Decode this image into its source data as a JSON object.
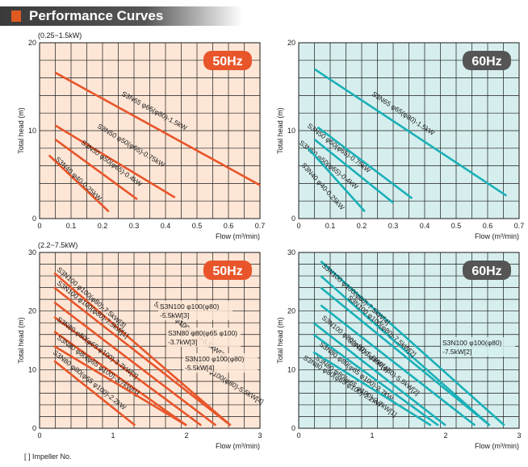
{
  "header": {
    "title": "Performance Curves"
  },
  "footnote": "[ ] Impeller No.",
  "colors": {
    "hz50": "#e8552a",
    "hz60": "#1ab0b8",
    "bg50": "#fde6d6",
    "bg60": "#d6efee",
    "grid": "#1a1a1a"
  },
  "chart_data": [
    {
      "type": "line",
      "subtitle": "(0.25~1.5kW)",
      "badge": "50Hz",
      "xlabel": "Flow (m³/min)",
      "ylabel": "Total head (m)",
      "xlim": [
        0,
        0.7
      ],
      "ylim": [
        0,
        20
      ],
      "xticks": [
        "0",
        "0.1",
        "0.2",
        "0.3",
        "0.4",
        "0.5",
        "0.6",
        "0.7"
      ],
      "yticks": [
        "0",
        "10",
        "20"
      ],
      "series": [
        {
          "name": "S3N65 φ65(φ80)-1.5kW",
          "x": [
            0.05,
            0.7
          ],
          "y": [
            16.6,
            3.8
          ]
        },
        {
          "name": "S3N50 φ50(φ65)-0.75kW",
          "x": [
            0.05,
            0.43
          ],
          "y": [
            10.6,
            2.4
          ]
        },
        {
          "name": "S3N50 φ50(φ65)-0.4kW",
          "x": [
            0.05,
            0.31
          ],
          "y": [
            9.0,
            2.2
          ]
        },
        {
          "name": "S3N40 φ40-0.25kW",
          "x": [
            0.03,
            0.22
          ],
          "y": [
            7.2,
            0.8
          ]
        }
      ]
    },
    {
      "type": "line",
      "subtitle": "",
      "badge": "60Hz",
      "xlabel": "Flow (m³/min)",
      "ylabel": "Total head (m)",
      "xlim": [
        0,
        0.7
      ],
      "ylim": [
        0,
        20
      ],
      "xticks": [
        "0",
        "0.1",
        "0.2",
        "0.3",
        "0.4",
        "0.5",
        "0.6",
        "0.7"
      ],
      "yticks": [
        "0",
        "10",
        "20"
      ],
      "series": [
        {
          "name": "S3N65 φ65(φ80)-1.5kW",
          "x": [
            0.05,
            0.66
          ],
          "y": [
            17.0,
            2.6
          ]
        },
        {
          "name": "S3N50 φ50(φ65)-0.75kW",
          "x": [
            0.06,
            0.36
          ],
          "y": [
            10.4,
            2.3
          ]
        },
        {
          "name": "S3N50 φ50(φ65)-0.4kW",
          "x": [
            0.05,
            0.3
          ],
          "y": [
            9.0,
            1.8
          ]
        },
        {
          "name": "S3N40 φ40-0.25kW",
          "x": [
            0.03,
            0.21
          ],
          "y": [
            8.0,
            0.8
          ]
        }
      ]
    },
    {
      "type": "line",
      "subtitle": "(2.2~7.5kW)",
      "badge": "50Hz",
      "xlabel": "Flow (m³/min)",
      "ylabel": "Total head (m)",
      "xlim": [
        0,
        3
      ],
      "ylim": [
        0,
        30
      ],
      "xticks": [
        "0",
        "1",
        "2",
        "3"
      ],
      "yticks": [
        "0",
        "10",
        "20",
        "30"
      ],
      "annotations": [
        "S3N100 φ100(φ80) -5.5kW[3]",
        "S3N80 φ80(φ65 φ100) -3.7kW[3]",
        "S3N100 φ100(φ80) -5.5kW[4]"
      ],
      "series": [
        {
          "name": "S3N100 φ100(φ80)-7.5kW[3]",
          "x": [
            0.2,
            2.6
          ],
          "y": [
            26.5,
            0.5
          ]
        },
        {
          "name": "S3N100 φ100(φ80)-7.5kW[1]",
          "x": [
            0.2,
            2.6
          ],
          "y": [
            24.0,
            0.5
          ]
        },
        {
          "name": "S3N100 φ100(φ80)-5.5kW[3]",
          "x": [
            0.2,
            2.4
          ],
          "y": [
            21.5,
            0.5
          ]
        },
        {
          "name": "S3N80 φ80(φ65 φ100)-3.7kW[3]",
          "x": [
            0.2,
            2.2
          ],
          "y": [
            19.0,
            0.5
          ]
        },
        {
          "name": "S3N80 φ80(φ65 φ100)-3.7kW[1]",
          "x": [
            0.2,
            2.0
          ],
          "y": [
            16.5,
            0.5
          ]
        },
        {
          "name": "S3N100 φ100(φ80)-5.5kW[4]",
          "x": [
            0.2,
            2.0
          ],
          "y": [
            14.0,
            0.5
          ]
        },
        {
          "name": "S3N80 φ80(φ65 φ100)-2.2kW",
          "x": [
            0.2,
            1.3
          ],
          "y": [
            11.5,
            0.5
          ]
        }
      ]
    },
    {
      "type": "line",
      "subtitle": "",
      "badge": "60Hz",
      "xlabel": "Flow (m³/min)",
      "ylabel": "Total head (m)",
      "xlim": [
        0,
        3
      ],
      "ylim": [
        0,
        30
      ],
      "xticks": [
        "0",
        "1",
        "2",
        "3"
      ],
      "yticks": [
        "0",
        "10",
        "20",
        "30"
      ],
      "annotations": [
        "S3N100 φ100(φ80) -7.5kW[2]"
      ],
      "series": [
        {
          "name": "S3N100 φ100(φ80)-7.5kW[4]",
          "x": [
            0.3,
            2.8
          ],
          "y": [
            28.5,
            0.5
          ]
        },
        {
          "name": "S3N100 φ100(φ80)-7.5kW[2]",
          "x": [
            0.3,
            2.6
          ],
          "y": [
            26.0,
            0.5
          ]
        },
        {
          "name": "S3N100 φ80(φ80)-5.5kW[4]",
          "x": [
            0.3,
            2.6
          ],
          "y": [
            24.0,
            0.5
          ]
        },
        {
          "name": "S3N100 φ100(φ80)-5.5kW[2]",
          "x": [
            0.3,
            2.4
          ],
          "y": [
            21.0,
            0.5
          ]
        },
        {
          "name": "S3N80 φ80(φ65 φ100)-3.7kW",
          "x": [
            0.2,
            2.0
          ],
          "y": [
            18.0,
            0.5
          ]
        },
        {
          "name": "S3N80 φ80(φ65 φ100)-3.7kW[1]",
          "x": [
            0.2,
            1.9
          ],
          "y": [
            16.0,
            0.5
          ]
        },
        {
          "name": "S3N80 φ80(φ65 φ100)-2.2kW",
          "x": [
            0.2,
            1.8
          ],
          "y": [
            13.0,
            0.5
          ]
        }
      ]
    }
  ]
}
